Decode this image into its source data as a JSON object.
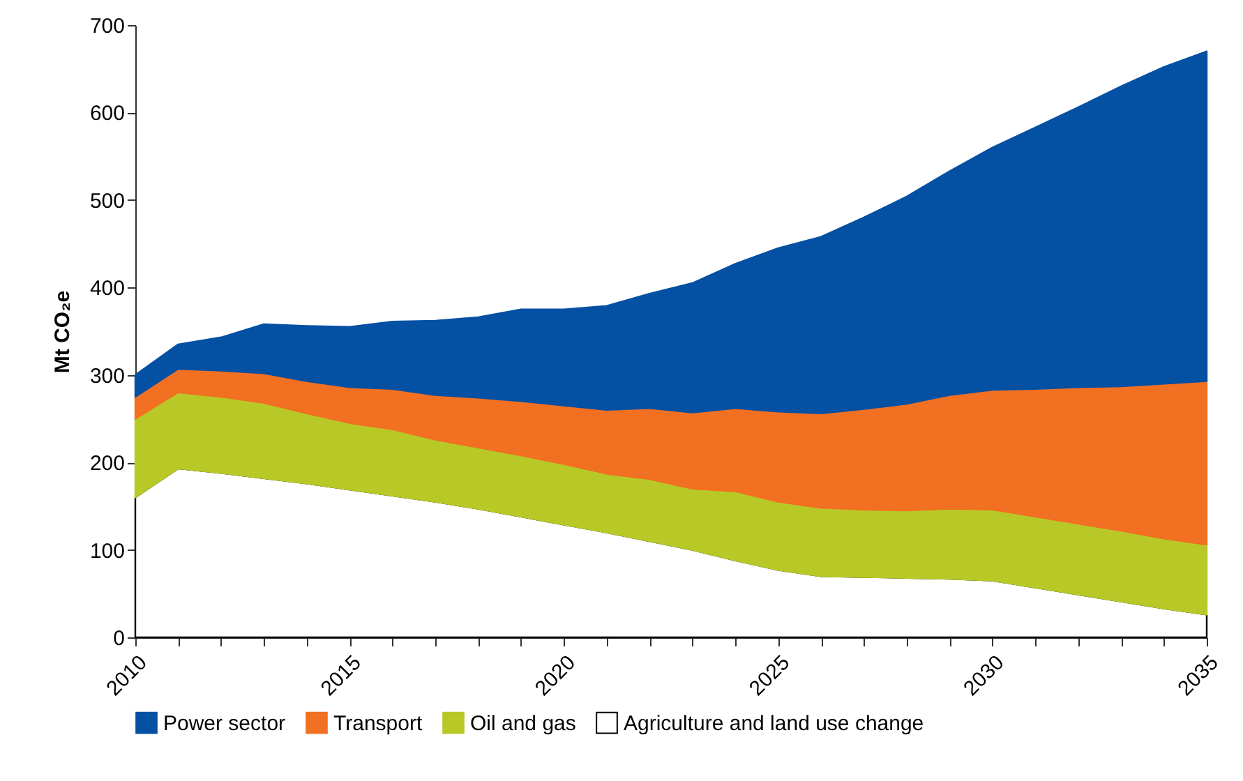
{
  "chart_data": {
    "type": "area",
    "stacked": true,
    "ylabel": "Mt CO₂e",
    "x": [
      2010,
      2011,
      2012,
      2013,
      2014,
      2015,
      2016,
      2017,
      2018,
      2019,
      2020,
      2021,
      2022,
      2023,
      2024,
      2025,
      2026,
      2027,
      2028,
      2029,
      2030,
      2031,
      2032,
      2033,
      2034,
      2035
    ],
    "series": [
      {
        "name": "Agriculture and land use change",
        "color": "#ffffff",
        "values": [
          160,
          193,
          188,
          182,
          176,
          169,
          162,
          155,
          147,
          138,
          129,
          120,
          110,
          100,
          88,
          77,
          70,
          69,
          68,
          67,
          65,
          57,
          49,
          41,
          33,
          26
        ]
      },
      {
        "name": "Oil and gas",
        "color": "#b8c927",
        "values": [
          90,
          87,
          87,
          86,
          80,
          76,
          76,
          71,
          70,
          70,
          69,
          67,
          71,
          70,
          79,
          78,
          78,
          77,
          77,
          80,
          81,
          81,
          81,
          81,
          80,
          80
        ]
      },
      {
        "name": "Transport",
        "color": "#f27021",
        "values": [
          25,
          27,
          30,
          34,
          37,
          41,
          46,
          51,
          57,
          62,
          67,
          73,
          81,
          87,
          95,
          103,
          108,
          115,
          122,
          130,
          137,
          146,
          156,
          165,
          177,
          187
        ]
      },
      {
        "name": "Power sector",
        "color": "#0450a3",
        "values": [
          25,
          28,
          38,
          56,
          63,
          69,
          77,
          85,
          92,
          105,
          110,
          119,
          131,
          148,
          165,
          187,
          202,
          219,
          237,
          256,
          277,
          299,
          320,
          343,
          362,
          377
        ]
      }
    ],
    "xlim": [
      2010,
      2035
    ],
    "xticks": [
      2010,
      {
        "value": 2011,
        "label": null
      },
      {
        "value": 2012,
        "label": null
      },
      {
        "value": 2013,
        "label": null
      },
      {
        "value": 2014,
        "label": null
      },
      2015,
      {
        "value": 2016,
        "label": null
      },
      {
        "value": 2017,
        "label": null
      },
      {
        "value": 2018,
        "label": null
      },
      {
        "value": 2019,
        "label": null
      },
      2020,
      {
        "value": 2021,
        "label": null
      },
      {
        "value": 2022,
        "label": null
      },
      {
        "value": 2023,
        "label": null
      },
      {
        "value": 2024,
        "label": null
      },
      2025,
      {
        "value": 2026,
        "label": null
      },
      {
        "value": 2027,
        "label": null
      },
      {
        "value": 2028,
        "label": null
      },
      {
        "value": 2029,
        "label": null
      },
      2030,
      {
        "value": 2031,
        "label": null
      },
      {
        "value": 2032,
        "label": null
      },
      {
        "value": 2033,
        "label": null
      },
      {
        "value": 2034,
        "label": null
      },
      2035
    ],
    "ylim": [
      0,
      700
    ],
    "yticks": [
      0,
      100,
      200,
      300,
      400,
      500,
      600,
      700
    ],
    "grid": false,
    "legend": "bottom"
  }
}
